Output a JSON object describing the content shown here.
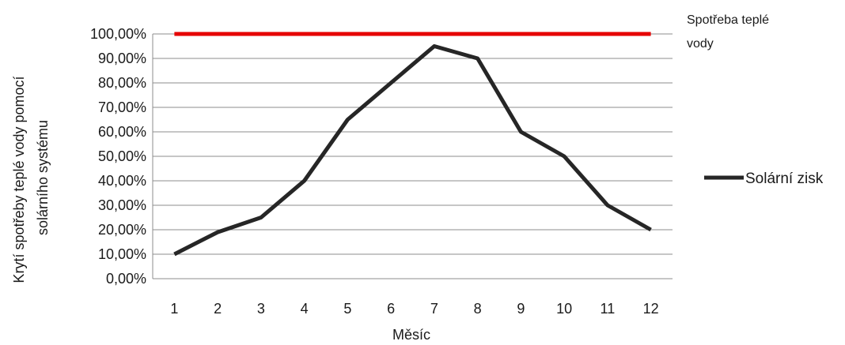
{
  "chart_data": {
    "type": "line",
    "x": [
      1,
      2,
      3,
      4,
      5,
      6,
      7,
      8,
      9,
      10,
      11,
      12
    ],
    "categories": [
      "1",
      "2",
      "3",
      "4",
      "5",
      "6",
      "7",
      "8",
      "9",
      "10",
      "11",
      "12"
    ],
    "series": [
      {
        "name": "Spotřeba teplé vody",
        "color": "#e60000",
        "values": [
          1.0,
          1.0,
          1.0,
          1.0,
          1.0,
          1.0,
          1.0,
          1.0,
          1.0,
          1.0,
          1.0,
          1.0
        ]
      },
      {
        "name": "Solární zisk",
        "color": "#262626",
        "values": [
          0.1,
          0.19,
          0.25,
          0.4,
          0.65,
          0.8,
          0.95,
          0.9,
          0.6,
          0.5,
          0.3,
          0.2
        ]
      }
    ],
    "ylim": [
      0,
      1
    ],
    "yticks": [
      "0,00%",
      "10,00%",
      "20,00%",
      "30,00%",
      "40,00%",
      "50,00%",
      "60,00%",
      "70,00%",
      "80,00%",
      "90,00%",
      "100,00%"
    ],
    "xlabel": "Měsíc",
    "ylabel_lines": [
      "Krytí spotřeby teplé vody pomocí",
      "solárního systému"
    ],
    "grid": true,
    "legend_position": "right"
  }
}
